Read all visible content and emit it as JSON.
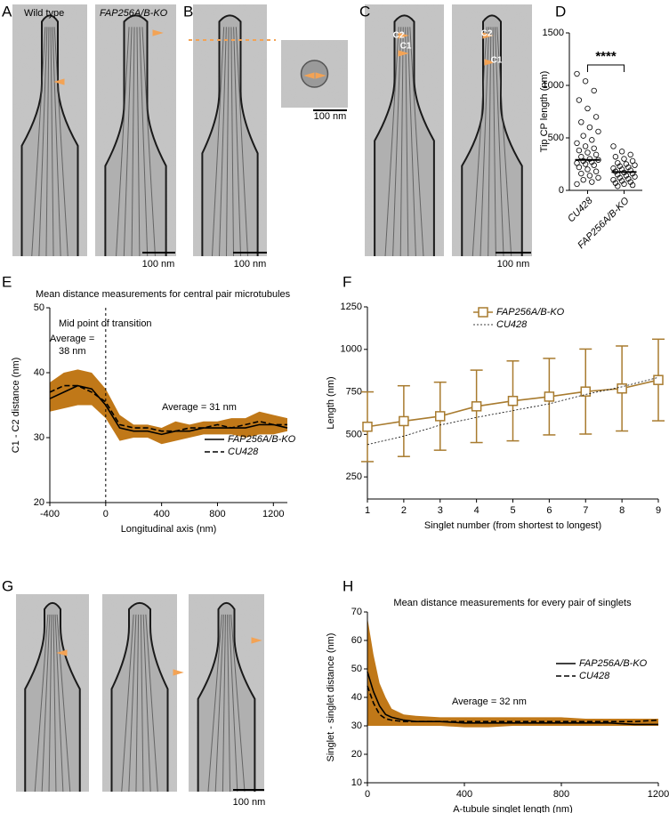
{
  "panels": {
    "letters": [
      "A",
      "B",
      "C",
      "D",
      "E",
      "F",
      "G",
      "H"
    ]
  },
  "images": {
    "wild_type": "Wild type",
    "ko": "FAP256A/B-KO",
    "scale_bars": [
      "100 nm",
      "100 nm",
      "100 nm",
      "100 nm",
      "100 nm"
    ],
    "c_labels": [
      "C2",
      "C1",
      "C2",
      "C1"
    ]
  },
  "chart_data": [
    {
      "type": "strip",
      "categories": [
        "CU428",
        "FAP256A/B-KO"
      ],
      "y_label": "Tip CP length (nm)",
      "ylim": [
        0,
        1500
      ],
      "yticks": [
        0,
        500,
        1000,
        1500
      ],
      "annotation": "****",
      "marker_color": "#000000",
      "points": [
        [
          1110,
          1040,
          950,
          860,
          780,
          700,
          650,
          600,
          560,
          520,
          480,
          450,
          420,
          400,
          380,
          360,
          340,
          320,
          300,
          290,
          280,
          270,
          260,
          250,
          240,
          220,
          200,
          180,
          160,
          140,
          120,
          100,
          80,
          60
        ],
        [
          420,
          370,
          340,
          320,
          300,
          280,
          260,
          250,
          240,
          230,
          220,
          210,
          200,
          190,
          180,
          170,
          160,
          150,
          140,
          130,
          120,
          110,
          100,
          90,
          80,
          70,
          60,
          50,
          40
        ]
      ],
      "medians": [
        290,
        175
      ]
    },
    {
      "type": "line",
      "title": "Mean distance measurements for central pair microtubules",
      "x_label": "Longitudinal axis (nm)",
      "y_label": "C1 - C2 distance (nm)",
      "xlim": [
        -400,
        1300
      ],
      "xticks": [
        -400,
        0,
        400,
        800,
        1200
      ],
      "ylim": [
        20,
        50
      ],
      "yticks": [
        20,
        30,
        40,
        50
      ],
      "x": [
        -400,
        -300,
        -200,
        -100,
        0,
        100,
        200,
        300,
        400,
        500,
        600,
        700,
        800,
        900,
        1000,
        1100,
        1200,
        1300
      ],
      "series": [
        {
          "name": "FAP256A/B-KO",
          "color": "#000000",
          "dash": "solid",
          "values": [
            36,
            37,
            38,
            37.5,
            35,
            31.5,
            31,
            31,
            30.5,
            31,
            31,
            31.5,
            31.5,
            31.5,
            31.5,
            32,
            32,
            31.5
          ]
        },
        {
          "name": "CU428",
          "color": "#000000",
          "dash": "dashed",
          "values": [
            37,
            38,
            38,
            37,
            35.5,
            32,
            31.5,
            31.5,
            31,
            31,
            31.5,
            31.5,
            32,
            31.5,
            32,
            32.5,
            32,
            32
          ]
        }
      ],
      "band": {
        "color": "#c07818",
        "lower": [
          34,
          34.5,
          35,
          35,
          33,
          29.5,
          30,
          30,
          29,
          29.5,
          30,
          30.5,
          30.5,
          30.5,
          30,
          30.5,
          30.5,
          31
        ],
        "upper": [
          38.5,
          40,
          40.5,
          40,
          37.5,
          33.5,
          32,
          32,
          31.5,
          32.5,
          32,
          32.5,
          32.5,
          33,
          33,
          34,
          33.5,
          33
        ]
      },
      "vline": 0,
      "annotations": [
        "Mid point of transition",
        "Average =",
        "38 nm",
        "Average = 31 nm"
      ],
      "legend": "upper right"
    },
    {
      "type": "line",
      "x_label": "Singlet number (from shortest to longest)",
      "y_label": "Length (nm)",
      "xlim": [
        1,
        9
      ],
      "xticks": [
        1,
        2,
        3,
        4,
        5,
        6,
        7,
        8,
        9
      ],
      "ylim": [
        120,
        1250
      ],
      "yticks": [
        250,
        500,
        750,
        1000,
        1250
      ],
      "x": [
        1,
        2,
        3,
        4,
        5,
        6,
        7,
        8,
        9
      ],
      "series": [
        {
          "name": "FAP256A/B-KO",
          "color": "#a87b2f",
          "dash": "solid",
          "marker": "square",
          "values": [
            545,
            578,
            607,
            665,
            697,
            722,
            752,
            770,
            820
          ],
          "errors": [
            205,
            208,
            200,
            213,
            235,
            225,
            250,
            250,
            240
          ]
        },
        {
          "name": "CU428",
          "color": "#000000",
          "dash": "dotted",
          "values": [
            440,
            490,
            555,
            600,
            640,
            680,
            735,
            780,
            835
          ]
        }
      ],
      "legend": "upper right"
    },
    {
      "type": "line",
      "title": "Mean distance measurements for every pair of singlets",
      "x_label": "A-tubule singlet length (nm)",
      "y_label": "Singlet - singlet distance (nm)",
      "xlim": [
        0,
        1200
      ],
      "xticks": [
        0,
        400,
        800,
        1200
      ],
      "ylim": [
        10,
        70
      ],
      "yticks": [
        10,
        20,
        30,
        40,
        50,
        60,
        70
      ],
      "x": [
        0,
        25,
        50,
        75,
        100,
        150,
        200,
        300,
        400,
        500,
        600,
        700,
        800,
        900,
        1000,
        1100,
        1200
      ],
      "series": [
        {
          "name": "FAP256A/B-KO",
          "color": "#000000",
          "dash": "solid",
          "values": [
            49,
            42,
            37,
            34,
            33,
            32,
            31.5,
            31.5,
            31,
            31,
            31,
            31,
            31,
            31,
            31,
            30.5,
            30.5
          ]
        },
        {
          "name": "CU428",
          "color": "#000000",
          "dash": "dashed",
          "values": [
            44,
            38,
            34,
            32.5,
            32,
            31.5,
            31.5,
            31.5,
            31.5,
            31.5,
            31.5,
            31.5,
            31.5,
            31.5,
            31.5,
            31.5,
            32
          ]
        }
      ],
      "band": {
        "color": "#c07818",
        "lower": [
          30,
          30,
          30,
          30,
          30,
          30,
          30,
          30,
          29.5,
          29.5,
          30,
          30,
          30,
          30,
          30,
          30,
          30
        ],
        "upper": [
          68,
          55,
          45,
          40,
          36,
          34,
          33.5,
          33,
          33,
          33,
          33,
          33,
          33,
          32.5,
          32.5,
          32.5,
          32.5
        ]
      },
      "annotations": [
        "Average = 32 nm"
      ],
      "legend": "upper right"
    }
  ]
}
